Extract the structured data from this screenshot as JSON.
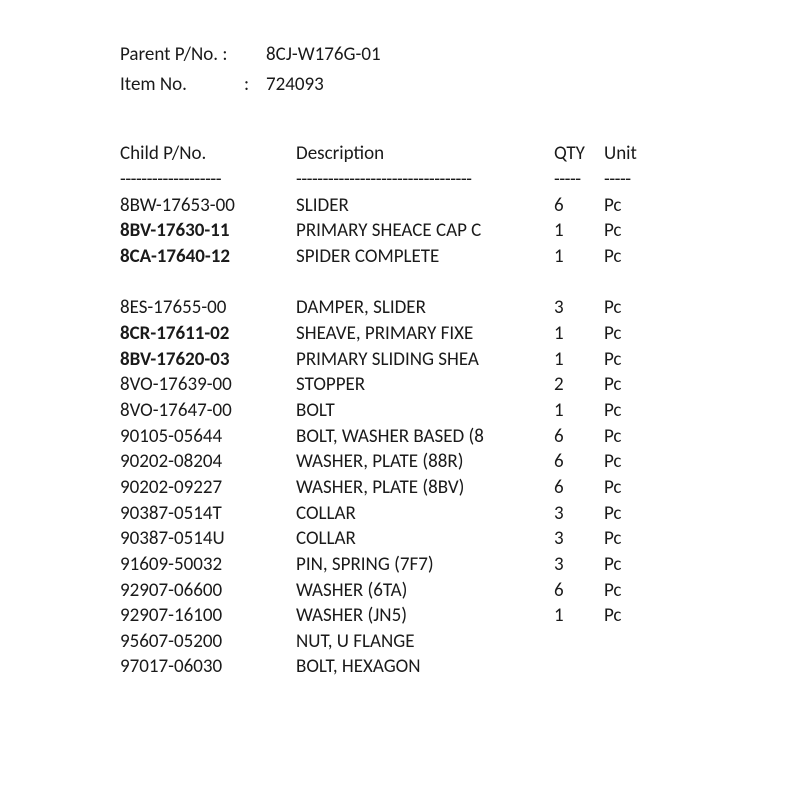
{
  "header": {
    "parent_label": "Parent P/No. :",
    "parent_value": "8CJ-W176G-01",
    "item_label": "Item No.",
    "item_colon": ":",
    "item_value": "724093"
  },
  "columns": {
    "pn": "Child P/No.",
    "desc": "Description",
    "qty": "QTY",
    "unit": "Unit"
  },
  "dashes": {
    "pn": "-------------------",
    "desc": "---------------------------------",
    "qty": "-----",
    "unit": "-----"
  },
  "rows": [
    {
      "pn": "8BW-17653-00",
      "desc": "SLIDER",
      "qty": "6",
      "unit": "Pc",
      "bold": false
    },
    {
      "pn": "8BV-17630-11",
      "desc": "PRIMARY SHEACE CAP C",
      "qty": "1",
      "unit": "Pc",
      "bold": true
    },
    {
      "pn": "8CA-17640-12",
      "desc": "SPIDER COMPLETE",
      "qty": "1",
      "unit": "Pc",
      "bold": true
    },
    null,
    {
      "pn": "8ES-17655-00",
      "desc": "DAMPER, SLIDER",
      "qty": "3",
      "unit": "Pc",
      "bold": false
    },
    {
      "pn": "8CR-17611-02",
      "desc": "SHEAVE, PRIMARY FIXE",
      "qty": "1",
      "unit": "Pc",
      "bold": true
    },
    {
      "pn": "8BV-17620-03",
      "desc": "PRIMARY SLIDING SHEA",
      "qty": "1",
      "unit": "Pc",
      "bold": true
    },
    {
      "pn": "8VO-17639-00",
      "desc": "STOPPER",
      "qty": "2",
      "unit": "Pc",
      "bold": false
    },
    {
      "pn": "8VO-17647-00",
      "desc": "BOLT",
      "qty": "1",
      "unit": "Pc",
      "bold": false
    },
    {
      "pn": "90105-05644",
      "desc": "BOLT, WASHER BASED (8",
      "qty": "6",
      "unit": "Pc",
      "bold": false
    },
    {
      "pn": "90202-08204",
      "desc": "WASHER, PLATE (88R)",
      "qty": "6",
      "unit": "Pc",
      "bold": false
    },
    {
      "pn": "90202-09227",
      "desc": "WASHER, PLATE (8BV)",
      "qty": "6",
      "unit": "Pc",
      "bold": false
    },
    {
      "pn": "90387-0514T",
      "desc": "COLLAR",
      "qty": "3",
      "unit": "Pc",
      "bold": false
    },
    {
      "pn": "90387-0514U",
      "desc": "COLLAR",
      "qty": "3",
      "unit": "Pc",
      "bold": false
    },
    {
      "pn": "91609-50032",
      "desc": "PIN, SPRING (7F7)",
      "qty": "3",
      "unit": "Pc",
      "bold": false
    },
    {
      "pn": "92907-06600",
      "desc": "WASHER (6TA)",
      "qty": "6",
      "unit": "Pc",
      "bold": false
    },
    {
      "pn": "92907-16100",
      "desc": "WASHER (JN5)",
      "qty": "1",
      "unit": "Pc",
      "bold": false
    },
    {
      "pn": "95607-05200",
      "desc": "NUT, U FLANGE",
      "qty": "",
      "unit": "",
      "bold": false
    },
    {
      "pn": "97017-06030",
      "desc": "BOLT, HEXAGON",
      "qty": "",
      "unit": "",
      "bold": false
    }
  ]
}
